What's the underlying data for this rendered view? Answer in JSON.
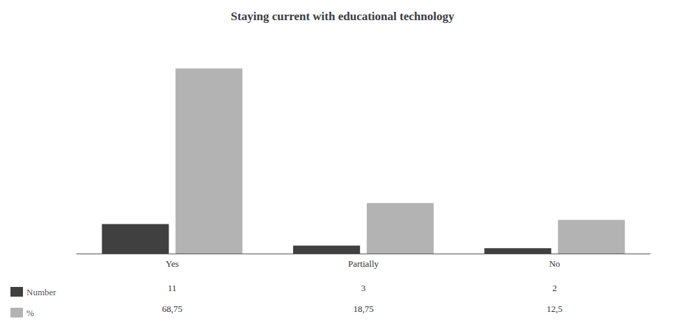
{
  "chart_data": {
    "type": "bar",
    "title": "Staying current with educational technology",
    "categories": [
      "Yes",
      "Partially",
      "No"
    ],
    "series": [
      {
        "name": "Number",
        "color": "#404040",
        "values": [
          11,
          3,
          2
        ],
        "value_labels": [
          "11",
          "3",
          "2"
        ]
      },
      {
        "name": "%",
        "color": "#b3b3b3",
        "values": [
          68.75,
          18.75,
          12.5
        ],
        "value_labels": [
          "68,75",
          "18,75",
          "12,5"
        ]
      }
    ],
    "ylim": [
      0,
      80
    ],
    "tick_labels": "x",
    "grid": false,
    "legend": "lower left"
  }
}
